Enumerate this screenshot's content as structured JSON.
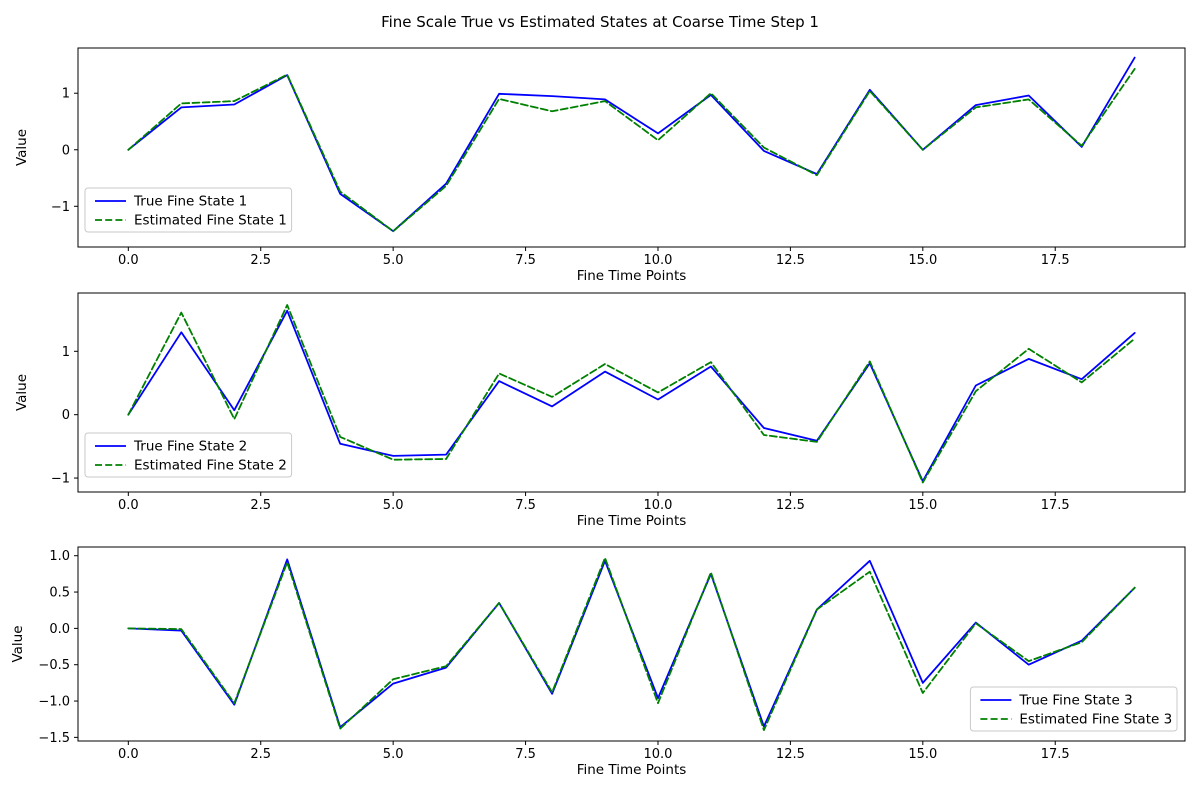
{
  "figure": {
    "title": "Fine Scale True vs Estimated States at Coarse Time Step 1",
    "background": "#ffffff",
    "colors": {
      "true_line": "#0000ff",
      "estimated_line": "#008000",
      "axis": "#000000",
      "legend_border": "#c9c9c9",
      "legend_fill": "rgba(255,255,255,0.85)"
    }
  },
  "chart_data": [
    {
      "type": "line",
      "xlabel": "Fine Time Points",
      "ylabel": "Value",
      "grid": false,
      "legend_position": "lower left",
      "xlim": [
        -0.95,
        19.95
      ],
      "ylim": [
        -1.72,
        1.8
      ],
      "x_ticks": [
        0,
        2.5,
        5,
        7.5,
        10,
        12.5,
        15,
        17.5
      ],
      "x_tick_labels": [
        "0.0",
        "2.5",
        "5.0",
        "7.5",
        "10.0",
        "12.5",
        "15.0",
        "17.5"
      ],
      "y_ticks": [
        -1,
        0,
        1
      ],
      "y_tick_labels": [
        "−1",
        "0",
        "1"
      ],
      "x": [
        0,
        1,
        2,
        3,
        4,
        5,
        6,
        7,
        8,
        9,
        10,
        11,
        12,
        13,
        14,
        15,
        16,
        17,
        18,
        19
      ],
      "series": [
        {
          "name": "True Fine State 1",
          "style": "solid",
          "color": "#0000ff",
          "values": [
            0.0,
            0.75,
            0.8,
            1.32,
            -0.78,
            -1.44,
            -0.6,
            0.99,
            0.95,
            0.89,
            0.29,
            0.97,
            -0.02,
            -0.43,
            1.06,
            0.0,
            0.79,
            0.96,
            0.05,
            1.63
          ]
        },
        {
          "name": "Estimated Fine State 1",
          "style": "dashed",
          "color": "#008000",
          "values": [
            0.0,
            0.82,
            0.86,
            1.33,
            -0.74,
            -1.44,
            -0.64,
            0.9,
            0.68,
            0.86,
            0.17,
            1.0,
            0.04,
            -0.45,
            1.04,
            0.0,
            0.75,
            0.89,
            0.07,
            1.43
          ]
        }
      ]
    },
    {
      "type": "line",
      "xlabel": "Fine Time Points",
      "ylabel": "Value",
      "grid": false,
      "legend_position": "lower left",
      "xlim": [
        -0.95,
        19.95
      ],
      "ylim": [
        -1.22,
        1.92
      ],
      "x_ticks": [
        0,
        2.5,
        5,
        7.5,
        10,
        12.5,
        15,
        17.5
      ],
      "x_tick_labels": [
        "0.0",
        "2.5",
        "5.0",
        "7.5",
        "10.0",
        "12.5",
        "15.0",
        "17.5"
      ],
      "y_ticks": [
        -1,
        0,
        1
      ],
      "y_tick_labels": [
        "−1",
        "0",
        "1"
      ],
      "x": [
        0,
        1,
        2,
        3,
        4,
        5,
        6,
        7,
        8,
        9,
        10,
        11,
        12,
        13,
        14,
        15,
        16,
        17,
        18,
        19
      ],
      "series": [
        {
          "name": "True Fine State 2",
          "style": "solid",
          "color": "#0000ff",
          "values": [
            0.0,
            1.3,
            0.07,
            1.64,
            -0.46,
            -0.65,
            -0.63,
            0.53,
            0.13,
            0.68,
            0.24,
            0.76,
            -0.21,
            -0.41,
            0.81,
            -1.05,
            0.46,
            0.88,
            0.56,
            1.29
          ]
        },
        {
          "name": "Estimated Fine State 2",
          "style": "dashed",
          "color": "#008000",
          "values": [
            0.0,
            1.61,
            -0.07,
            1.73,
            -0.35,
            -0.71,
            -0.7,
            0.65,
            0.28,
            0.8,
            0.35,
            0.83,
            -0.32,
            -0.43,
            0.84,
            -1.07,
            0.37,
            1.04,
            0.51,
            1.2
          ]
        }
      ]
    },
    {
      "type": "line",
      "xlabel": "Fine Time Points",
      "ylabel": "Value",
      "grid": false,
      "legend_position": "lower right",
      "xlim": [
        -0.95,
        19.95
      ],
      "ylim": [
        -1.55,
        1.12
      ],
      "x_ticks": [
        0,
        2.5,
        5,
        7.5,
        10,
        12.5,
        15,
        17.5
      ],
      "x_tick_labels": [
        "0.0",
        "2.5",
        "5.0",
        "7.5",
        "10.0",
        "12.5",
        "15.0",
        "17.5"
      ],
      "y_ticks": [
        1.0,
        0.5,
        0.0,
        -0.5,
        -1.0,
        -1.5
      ],
      "y_tick_labels": [
        "1.0",
        "0.5",
        "0.0",
        "−0.5",
        "−1.0",
        "−1.5"
      ],
      "x": [
        0,
        1,
        2,
        3,
        4,
        5,
        6,
        7,
        8,
        9,
        10,
        11,
        12,
        13,
        14,
        15,
        16,
        17,
        18,
        19
      ],
      "series": [
        {
          "name": "True Fine State 3",
          "style": "solid",
          "color": "#0000ff",
          "values": [
            0.0,
            -0.03,
            -1.05,
            0.95,
            -1.36,
            -0.76,
            -0.54,
            0.35,
            -0.9,
            0.93,
            -0.96,
            0.75,
            -1.35,
            0.26,
            0.93,
            -0.75,
            0.08,
            -0.5,
            -0.17,
            0.56
          ]
        },
        {
          "name": "Estimated Fine State 3",
          "style": "dashed",
          "color": "#008000",
          "values": [
            0.0,
            -0.01,
            -1.03,
            0.91,
            -1.38,
            -0.7,
            -0.52,
            0.35,
            -0.88,
            0.97,
            -1.03,
            0.77,
            -1.4,
            0.26,
            0.78,
            -0.89,
            0.07,
            -0.45,
            -0.19,
            0.56
          ]
        }
      ]
    }
  ]
}
